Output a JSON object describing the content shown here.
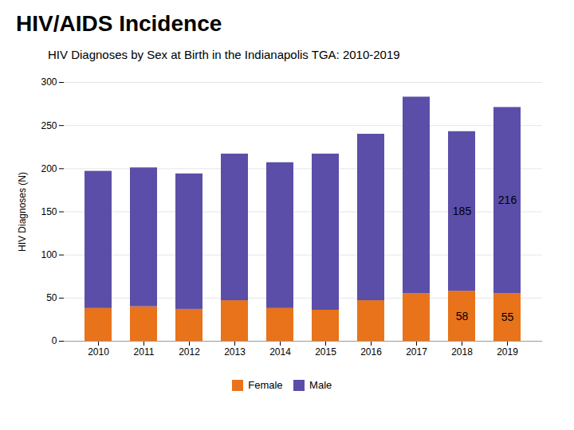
{
  "chart_data": {
    "type": "bar",
    "title": "HIV/AIDS Incidence",
    "subtitle": "HIV Diagnoses by Sex at Birth in the Indianapolis TGA: 2010-2019",
    "categories": [
      "2010",
      "2011",
      "2012",
      "2013",
      "2014",
      "2015",
      "2016",
      "2017",
      "2018",
      "2019"
    ],
    "series": [
      {
        "name": "Female",
        "color": "#E8731A",
        "values": [
          38,
          40,
          37,
          47,
          38,
          36,
          47,
          55,
          58,
          55
        ]
      },
      {
        "name": "Male",
        "color": "#5B4EA8",
        "values": [
          159,
          161,
          157,
          170,
          169,
          181,
          193,
          228,
          185,
          216
        ]
      }
    ],
    "stacked": true,
    "ylabel": "HIV Diagnoses (N)",
    "ylim": [
      0,
      300
    ],
    "yticks": [
      0,
      50,
      100,
      150,
      200,
      250,
      300
    ],
    "grid": true,
    "legend": "bottom",
    "annotations": [
      {
        "category": "2018",
        "series": "Female",
        "value": 58
      },
      {
        "category": "2018",
        "series": "Male",
        "value": 185
      },
      {
        "category": "2019",
        "series": "Female",
        "value": 55
      },
      {
        "category": "2019",
        "series": "Male",
        "value": 216
      }
    ]
  }
}
